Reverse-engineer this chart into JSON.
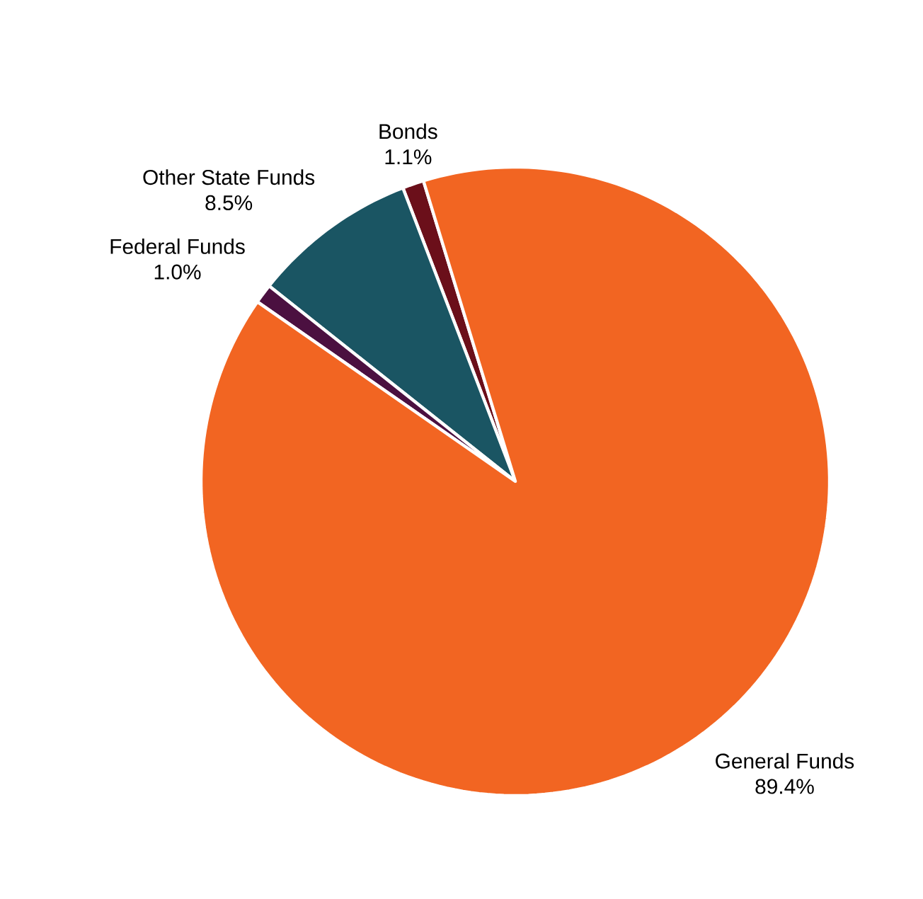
{
  "chart_data": {
    "type": "pie",
    "categories": [
      "Bonds",
      "Other State Funds",
      "Federal Funds",
      "General Funds"
    ],
    "values": [
      1.1,
      8.5,
      1.0,
      89.4
    ],
    "value_labels": [
      "1.1%",
      "8.5%",
      "1.0%",
      "89.4%"
    ],
    "colors": [
      "#6b0f1a",
      "#1a5563",
      "#4b1040",
      "#f26522"
    ]
  }
}
